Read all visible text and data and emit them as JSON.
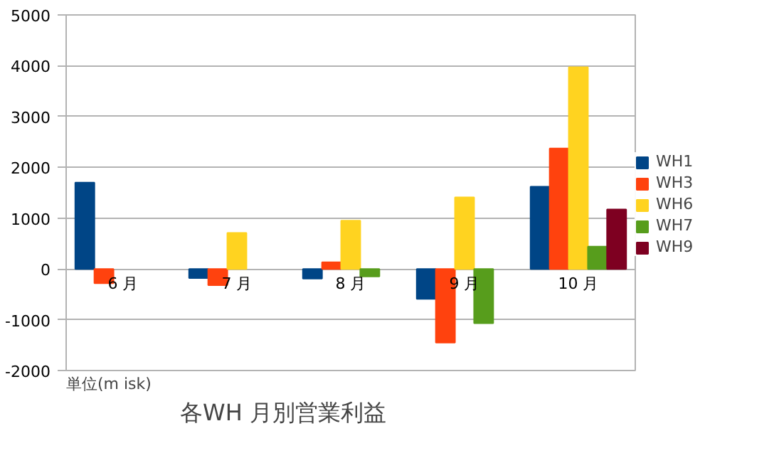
{
  "chart_data": {
    "type": "bar",
    "title": "各WH 月別営業利益",
    "annotations": [
      "単位(m isk)"
    ],
    "categories": [
      "6 月",
      "7 月",
      "8 月",
      "9 月",
      "10 月"
    ],
    "series": [
      {
        "name": "WH1",
        "color": "#004586",
        "values": [
          1700,
          -180,
          -190,
          -590,
          1620
        ]
      },
      {
        "name": "WH3",
        "color": "#ff420e",
        "values": [
          -280,
          -320,
          130,
          -1450,
          2370
        ]
      },
      {
        "name": "WH6",
        "color": "#ffd320",
        "values": [
          null,
          710,
          950,
          1410,
          3970
        ]
      },
      {
        "name": "WH7",
        "color": "#579d1c",
        "values": [
          null,
          null,
          -150,
          -1070,
          440
        ]
      },
      {
        "name": "WH9",
        "color": "#7e0021",
        "values": [
          null,
          null,
          null,
          null,
          1170
        ]
      }
    ],
    "ylim": [
      -2000,
      5000
    ],
    "yticks": [
      -2000,
      -1000,
      0,
      1000,
      2000,
      3000,
      4000,
      5000
    ],
    "grid": "y",
    "legend": "right"
  }
}
